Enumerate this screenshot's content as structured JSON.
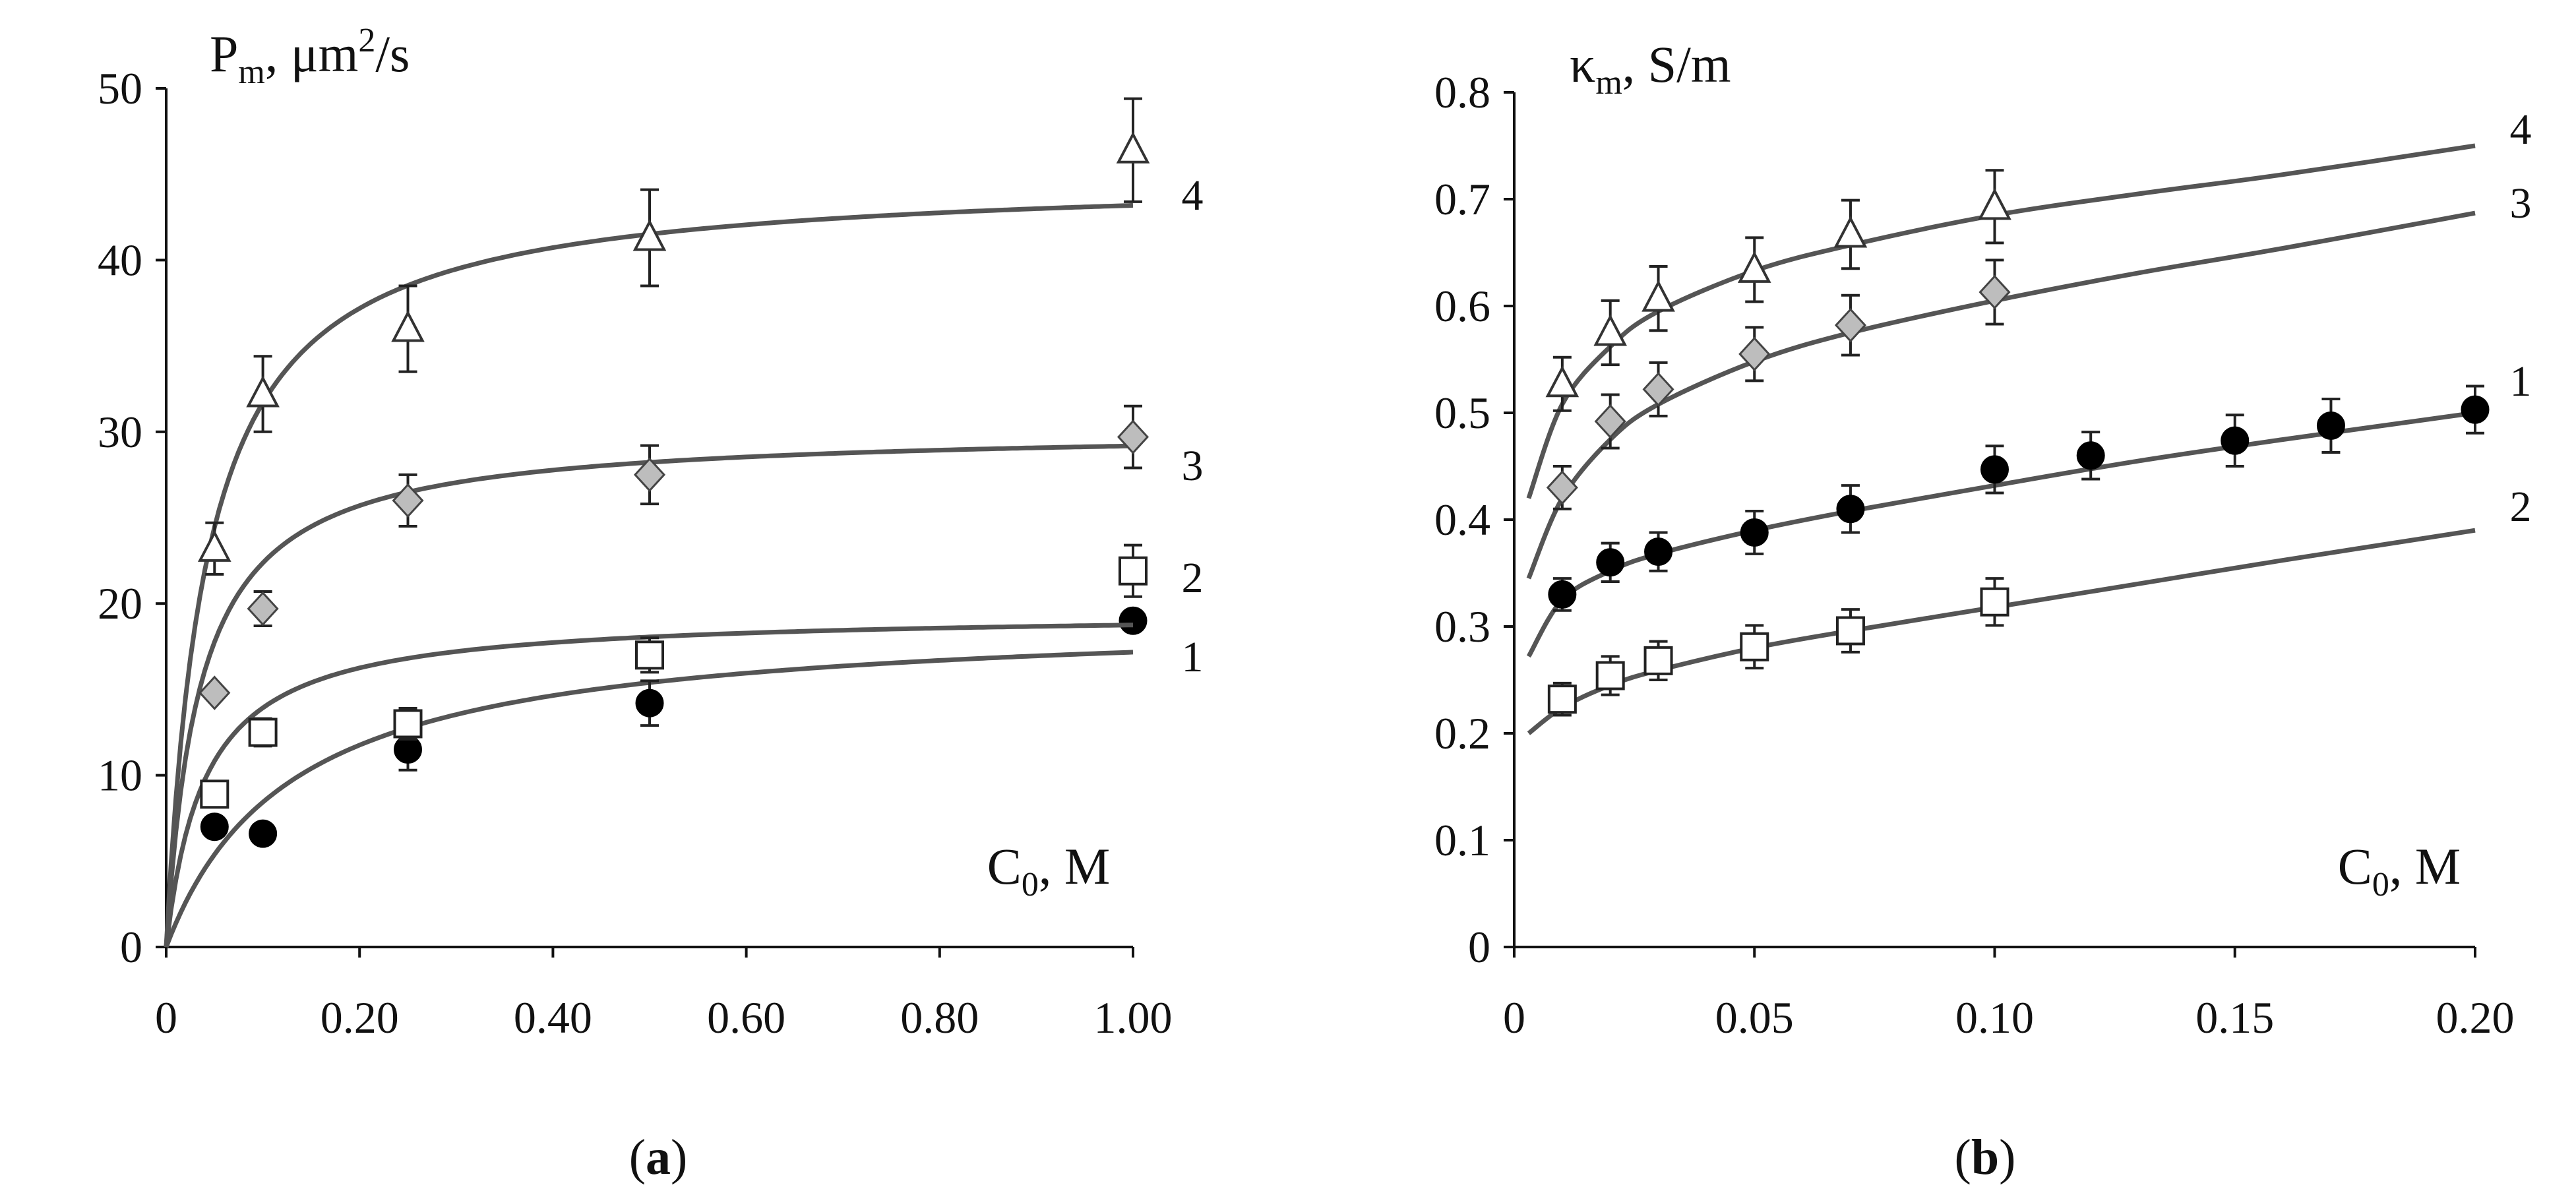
{
  "chart_data": [
    {
      "type": "scatter",
      "panel_label": "a",
      "ylabel": {
        "base": "P",
        "sub": "m",
        "unit_pre": ", μm",
        "sup": "2",
        "unit_post": "/s"
      },
      "xlabel": {
        "base": "C",
        "sub": "0",
        "unit": ", M"
      },
      "xlim": [
        0,
        1.0
      ],
      "ylim": [
        0,
        50
      ],
      "xticks": [
        0,
        0.2,
        0.4,
        0.6,
        0.8,
        1.0
      ],
      "xtick_labels": [
        "0",
        "0.20",
        "0.40",
        "0.60",
        "0.80",
        "1.00"
      ],
      "yticks": [
        0,
        10,
        20,
        30,
        40,
        50
      ],
      "ytick_labels": [
        "0",
        "10",
        "20",
        "30",
        "40",
        "50"
      ],
      "series": [
        {
          "name": "1",
          "marker": "circle-filled",
          "points": [
            {
              "x": 0.05,
              "y": 7.0,
              "err": 0
            },
            {
              "x": 0.1,
              "y": 6.6,
              "err": 0
            },
            {
              "x": 0.25,
              "y": 11.5,
              "err": 1.2
            },
            {
              "x": 0.5,
              "y": 14.2,
              "err": 1.3
            },
            {
              "x": 1.0,
              "y": 19.0,
              "err": 0
            }
          ],
          "fit": {
            "model": "hyperbolic",
            "pmax": 19.4,
            "k": 0.13
          }
        },
        {
          "name": "2",
          "marker": "square-open",
          "points": [
            {
              "x": 0.05,
              "y": 8.9,
              "err": 0
            },
            {
              "x": 0.1,
              "y": 12.5,
              "err": 0.8
            },
            {
              "x": 0.25,
              "y": 13.0,
              "err": 0.9
            },
            {
              "x": 0.5,
              "y": 17.0,
              "err": 1.0
            },
            {
              "x": 1.0,
              "y": 21.9,
              "err": 1.5
            }
          ],
          "fit": {
            "model": "hyperbolic",
            "pmax": 19.5,
            "k": 0.04
          }
        },
        {
          "name": "3",
          "marker": "diamond-gray",
          "points": [
            {
              "x": 0.05,
              "y": 14.8,
              "err": 0
            },
            {
              "x": 0.1,
              "y": 19.7,
              "err": 1.0
            },
            {
              "x": 0.25,
              "y": 26.0,
              "err": 1.5
            },
            {
              "x": 0.5,
              "y": 27.5,
              "err": 1.7
            },
            {
              "x": 1.0,
              "y": 29.7,
              "err": 1.8
            }
          ],
          "fit": {
            "model": "hyperbolic",
            "pmax": 30.2,
            "k": 0.035
          }
        },
        {
          "name": "4",
          "marker": "triangle-open",
          "points": [
            {
              "x": 0.05,
              "y": 23.2,
              "err": 1.5
            },
            {
              "x": 0.1,
              "y": 32.2,
              "err": 2.2
            },
            {
              "x": 0.25,
              "y": 36.0,
              "err": 2.5
            },
            {
              "x": 0.5,
              "y": 41.3,
              "err": 2.8
            },
            {
              "x": 1.0,
              "y": 46.4,
              "err": 3.0
            }
          ],
          "fit": {
            "model": "hyperbolic",
            "pmax": 45.0,
            "k": 0.042
          }
        }
      ]
    },
    {
      "type": "scatter",
      "panel_label": "b",
      "ylabel": {
        "base": "κ",
        "sub": "m",
        "unit_pre": ", S/m",
        "sup": "",
        "unit_post": ""
      },
      "xlabel": {
        "base": "C",
        "sub": "0",
        "unit": ", M"
      },
      "xlim": [
        0,
        0.2
      ],
      "ylim": [
        0,
        0.8
      ],
      "xticks": [
        0,
        0.05,
        0.1,
        0.15,
        0.2
      ],
      "xtick_labels": [
        "0",
        "0.05",
        "0.10",
        "0.15",
        "0.20"
      ],
      "yticks": [
        0,
        0.1,
        0.2,
        0.3,
        0.4,
        0.5,
        0.6,
        0.7,
        0.8
      ],
      "ytick_labels": [
        "0",
        "0.1",
        "0.2",
        "0.3",
        "0.4",
        "0.5",
        "0.6",
        "0.7",
        "0.8"
      ],
      "series": [
        {
          "name": "1",
          "marker": "circle-filled",
          "points": [
            {
              "x": 0.01,
              "y": 0.33,
              "err": 0.015
            },
            {
              "x": 0.02,
              "y": 0.36,
              "err": 0.018
            },
            {
              "x": 0.03,
              "y": 0.37,
              "err": 0.018
            },
            {
              "x": 0.05,
              "y": 0.388,
              "err": 0.02
            },
            {
              "x": 0.07,
              "y": 0.41,
              "err": 0.022
            },
            {
              "x": 0.1,
              "y": 0.447,
              "err": 0.022
            },
            {
              "x": 0.12,
              "y": 0.46,
              "err": 0.022
            },
            {
              "x": 0.15,
              "y": 0.474,
              "err": 0.024
            },
            {
              "x": 0.17,
              "y": 0.488,
              "err": 0.025
            },
            {
              "x": 0.2,
              "y": 0.503,
              "err": 0.022
            }
          ],
          "fit": {
            "x": [
              0.003,
              0.01,
              0.02,
              0.03,
              0.05,
              0.07,
              0.1,
              0.13,
              0.16,
              0.2
            ],
            "y": [
              0.272,
              0.325,
              0.352,
              0.368,
              0.39,
              0.408,
              0.432,
              0.455,
              0.475,
              0.5
            ]
          }
        },
        {
          "name": "2",
          "marker": "square-open",
          "points": [
            {
              "x": 0.01,
              "y": 0.232,
              "err": 0.015
            },
            {
              "x": 0.02,
              "y": 0.254,
              "err": 0.018
            },
            {
              "x": 0.03,
              "y": 0.268,
              "err": 0.018
            },
            {
              "x": 0.05,
              "y": 0.281,
              "err": 0.02
            },
            {
              "x": 0.07,
              "y": 0.296,
              "err": 0.02
            },
            {
              "x": 0.1,
              "y": 0.323,
              "err": 0.022
            }
          ],
          "fit": {
            "x": [
              0.003,
              0.01,
              0.02,
              0.03,
              0.05,
              0.07,
              0.1,
              0.13,
              0.16,
              0.2
            ],
            "y": [
              0.2,
              0.224,
              0.245,
              0.259,
              0.28,
              0.296,
              0.318,
              0.34,
              0.362,
              0.39
            ]
          }
        },
        {
          "name": "3",
          "marker": "diamond-gray",
          "points": [
            {
              "x": 0.01,
              "y": 0.43,
              "err": 0.02
            },
            {
              "x": 0.02,
              "y": 0.492,
              "err": 0.025
            },
            {
              "x": 0.03,
              "y": 0.522,
              "err": 0.025
            },
            {
              "x": 0.05,
              "y": 0.555,
              "err": 0.025
            },
            {
              "x": 0.07,
              "y": 0.582,
              "err": 0.028
            },
            {
              "x": 0.1,
              "y": 0.613,
              "err": 0.03
            }
          ],
          "fit": {
            "x": [
              0.003,
              0.01,
              0.02,
              0.03,
              0.05,
              0.07,
              0.1,
              0.13,
              0.16,
              0.2
            ],
            "y": [
              0.345,
              0.42,
              0.475,
              0.508,
              0.548,
              0.575,
              0.605,
              0.631,
              0.654,
              0.687
            ]
          }
        },
        {
          "name": "4",
          "marker": "triangle-open",
          "points": [
            {
              "x": 0.01,
              "y": 0.527,
              "err": 0.025
            },
            {
              "x": 0.02,
              "y": 0.575,
              "err": 0.03
            },
            {
              "x": 0.03,
              "y": 0.607,
              "err": 0.03
            },
            {
              "x": 0.05,
              "y": 0.634,
              "err": 0.03
            },
            {
              "x": 0.07,
              "y": 0.667,
              "err": 0.032
            },
            {
              "x": 0.1,
              "y": 0.693,
              "err": 0.034
            }
          ],
          "fit": {
            "x": [
              0.003,
              0.01,
              0.02,
              0.03,
              0.05,
              0.07,
              0.1,
              0.13,
              0.16,
              0.2
            ],
            "y": [
              0.42,
              0.508,
              0.562,
              0.595,
              0.633,
              0.657,
              0.685,
              0.705,
              0.723,
              0.75
            ]
          }
        }
      ]
    }
  ]
}
